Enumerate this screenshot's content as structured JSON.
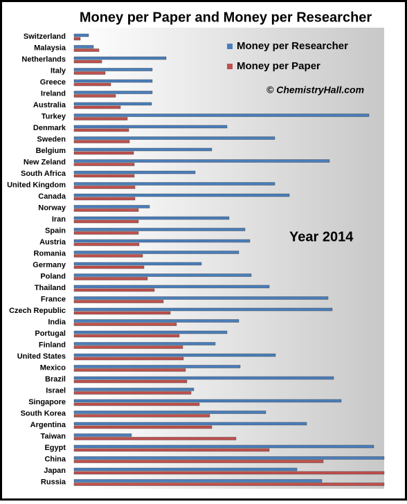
{
  "chart_data": {
    "type": "hbar",
    "title": "Money per Paper and Money per Researcher",
    "annotations": [
      "© ChemistryHall.com",
      "Year 2014"
    ],
    "legend": "upper right",
    "xlim": [
      0,
      448
    ],
    "categories": [
      "Switzerland",
      "Malaysia",
      "Netherlands",
      "Italy",
      "Greece",
      "Ireland",
      "Australia",
      "Turkey",
      "Denmark",
      "Sweden",
      "Belgium",
      "New Zeland",
      "South Africa",
      "United Kingdom",
      "Canada",
      "Norway",
      "Iran",
      "Spain",
      "Austria",
      "Romania",
      "Germany",
      "Poland",
      "Thailand",
      "France",
      "Czech Republic",
      "India",
      "Portugal",
      "Finland",
      "United States",
      "Mexico",
      "Brazil",
      "Israel",
      "Singapore",
      "South Korea",
      "Argentina",
      "Taiwan",
      "Egypt",
      "China",
      "Japan",
      "Russia"
    ],
    "series": [
      {
        "name": "Money per Researcher",
        "color": "#4a7ebb",
        "values": [
          21,
          28,
          133,
          113,
          113,
          113,
          112,
          426,
          221,
          290,
          199,
          369,
          175,
          290,
          311,
          109,
          224,
          247,
          254,
          238,
          184,
          256,
          282,
          367,
          373,
          238,
          221,
          204,
          291,
          240,
          375,
          173,
          386,
          277,
          336,
          83,
          433,
          448,
          322,
          358
        ]
      },
      {
        "name": "Money per Paper",
        "color": "#c0504d",
        "values": [
          9,
          36,
          40,
          45,
          53,
          60,
          67,
          77,
          79,
          80,
          86,
          87,
          87,
          88,
          88,
          93,
          93,
          93,
          94,
          99,
          101,
          106,
          116,
          129,
          139,
          148,
          152,
          157,
          158,
          161,
          163,
          169,
          181,
          196,
          199,
          234,
          282,
          360,
          448,
          448
        ]
      }
    ]
  }
}
